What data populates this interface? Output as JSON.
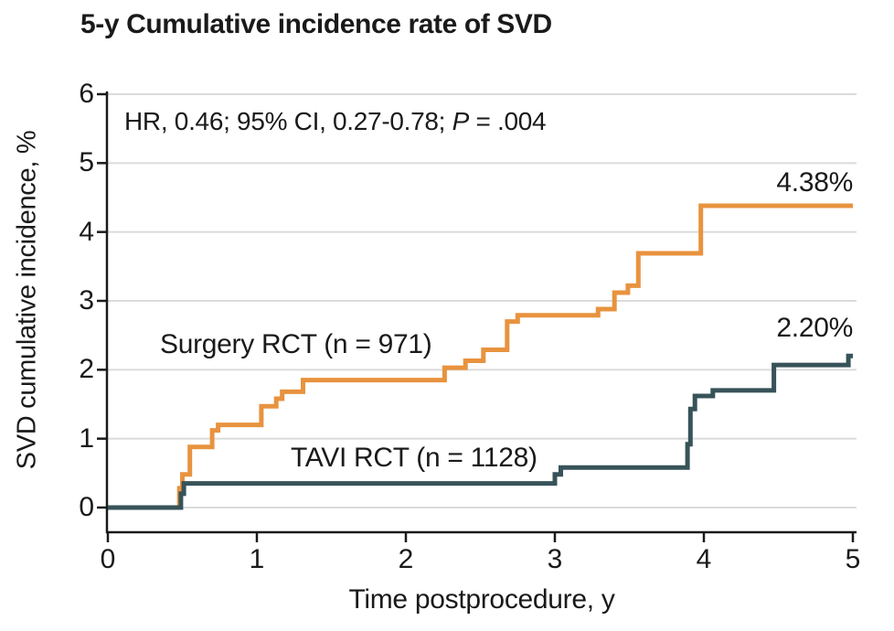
{
  "chart_data": {
    "type": "line",
    "subtype": "step-cumulative-incidence",
    "title": "5-y Cumulative incidence rate of SVD",
    "annotation": {
      "prefix": "HR, 0.46; 95% CI, 0.27-0.78; ",
      "p_italic": "P",
      "suffix": " = .004"
    },
    "xlabel": "Time postprocedure, y",
    "ylabel": "SVD cumulative incidence, %",
    "xlim": [
      0,
      5
    ],
    "ylim": [
      0,
      6
    ],
    "x_ticks": [
      "0",
      "1",
      "2",
      "3",
      "4",
      "5"
    ],
    "y_ticks": [
      "0",
      "1",
      "2",
      "3",
      "4",
      "5",
      "6"
    ],
    "grid": true,
    "legend_position": "inline-labels",
    "series": [
      {
        "name": "Surgery RCT (n = 971)",
        "color": "#E8933F",
        "end_label": "4.38%",
        "final_value": 4.38,
        "points": [
          [
            0,
            0
          ],
          [
            0.48,
            0
          ],
          [
            0.48,
            0.28
          ],
          [
            0.5,
            0.28
          ],
          [
            0.5,
            0.48
          ],
          [
            0.55,
            0.48
          ],
          [
            0.55,
            0.88
          ],
          [
            0.7,
            0.88
          ],
          [
            0.7,
            1.12
          ],
          [
            0.74,
            1.12
          ],
          [
            0.74,
            1.2
          ],
          [
            1.03,
            1.2
          ],
          [
            1.03,
            1.47
          ],
          [
            1.13,
            1.47
          ],
          [
            1.13,
            1.58
          ],
          [
            1.17,
            1.58
          ],
          [
            1.17,
            1.68
          ],
          [
            1.31,
            1.68
          ],
          [
            1.31,
            1.85
          ],
          [
            2.26,
            1.85
          ],
          [
            2.26,
            2.03
          ],
          [
            2.4,
            2.03
          ],
          [
            2.4,
            2.13
          ],
          [
            2.52,
            2.13
          ],
          [
            2.52,
            2.29
          ],
          [
            2.68,
            2.29
          ],
          [
            2.68,
            2.7
          ],
          [
            2.75,
            2.7
          ],
          [
            2.75,
            2.79
          ],
          [
            3.29,
            2.79
          ],
          [
            3.29,
            2.88
          ],
          [
            3.4,
            2.88
          ],
          [
            3.4,
            3.12
          ],
          [
            3.49,
            3.12
          ],
          [
            3.49,
            3.22
          ],
          [
            3.56,
            3.22
          ],
          [
            3.56,
            3.69
          ],
          [
            3.98,
            3.69
          ],
          [
            3.98,
            4.38
          ],
          [
            5.0,
            4.38
          ]
        ]
      },
      {
        "name": "TAVI RCT (n = 1128)",
        "color": "#375359",
        "end_label": "2.20%",
        "final_value": 2.2,
        "points": [
          [
            0,
            0
          ],
          [
            0.49,
            0
          ],
          [
            0.49,
            0.2
          ],
          [
            0.51,
            0.2
          ],
          [
            0.51,
            0.35
          ],
          [
            3.0,
            0.35
          ],
          [
            3.0,
            0.48
          ],
          [
            3.04,
            0.48
          ],
          [
            3.04,
            0.58
          ],
          [
            3.89,
            0.58
          ],
          [
            3.89,
            0.92
          ],
          [
            3.91,
            0.92
          ],
          [
            3.91,
            1.43
          ],
          [
            3.94,
            1.43
          ],
          [
            3.94,
            1.62
          ],
          [
            4.06,
            1.62
          ],
          [
            4.06,
            1.7
          ],
          [
            4.47,
            1.7
          ],
          [
            4.47,
            2.07
          ],
          [
            4.97,
            2.07
          ],
          [
            4.97,
            2.2
          ],
          [
            5.0,
            2.2
          ]
        ]
      }
    ],
    "colors": {
      "grid": "#DBDBDB",
      "axis": "#1A1A1A",
      "text": "#1A1A1A",
      "background": "#FFFFFF"
    }
  }
}
